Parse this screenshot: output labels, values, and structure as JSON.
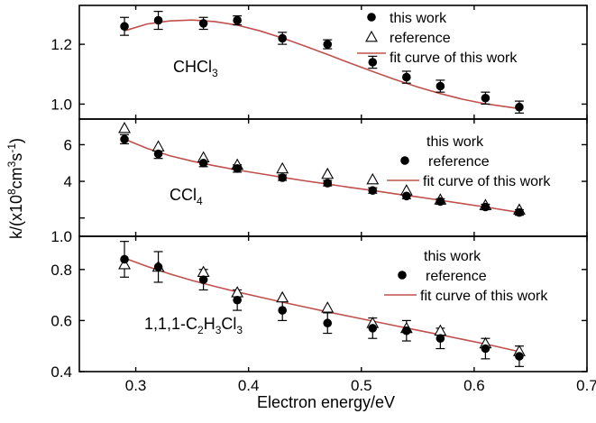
{
  "chart_data": {
    "type": "scatter",
    "xlabel": "Electron energy/eV",
    "ylabel": "k/(x10⁸cm³s⁻¹)",
    "ylabel_parts": {
      "main": "k/(x10",
      "exp1": "8",
      "mid": "cm",
      "exp2": "3",
      "mid2": "s",
      "exp3": "-1",
      "end": ")"
    },
    "xlim": [
      0.25,
      0.7
    ],
    "x_ticks": [
      0.3,
      0.4,
      0.5,
      0.6,
      0.7
    ],
    "x_tick_labels": [
      "0.3",
      "0.4",
      "0.5",
      "0.6",
      "0.7"
    ],
    "panels": [
      {
        "compound": {
          "main": "CHCl",
          "sub": "3",
          "main2": "",
          "sub2": "",
          "main3": "",
          "sub3": ""
        },
        "ylim": [
          0.95,
          1.33
        ],
        "y_ticks": [
          1.0,
          1.2
        ],
        "y_tick_labels": [
          "1.0",
          "1.2"
        ],
        "legend": [
          "this work",
          "reference",
          "fit curve of this work"
        ],
        "this_work": {
          "x": [
            0.29,
            0.32,
            0.36,
            0.39,
            0.43,
            0.47,
            0.51,
            0.54,
            0.57,
            0.61,
            0.64
          ],
          "y": [
            1.26,
            1.28,
            1.27,
            1.28,
            1.22,
            1.2,
            1.14,
            1.09,
            1.06,
            1.02,
            0.99
          ],
          "err": [
            0.03,
            0.03,
            0.02,
            0.015,
            0.02,
            0.015,
            0.02,
            0.02,
            0.02,
            0.02,
            0.02
          ]
        },
        "reference": {
          "x": [],
          "y": []
        },
        "fit": {
          "x": [
            0.29,
            0.31,
            0.33,
            0.35,
            0.37,
            0.39,
            0.41,
            0.43,
            0.45,
            0.47,
            0.49,
            0.51,
            0.53,
            0.55,
            0.57,
            0.59,
            0.61,
            0.64
          ],
          "y": [
            1.245,
            1.268,
            1.278,
            1.281,
            1.276,
            1.264,
            1.245,
            1.221,
            1.194,
            1.166,
            1.137,
            1.109,
            1.082,
            1.057,
            1.035,
            1.016,
            1.001,
            0.985
          ]
        }
      },
      {
        "compound": {
          "main": "CCl",
          "sub": "4",
          "main2": "",
          "sub2": "",
          "main3": "",
          "sub3": ""
        },
        "ylim": [
          1.0,
          7.4
        ],
        "y_ticks": [
          1.0,
          4,
          6
        ],
        "y_tick_labels": [
          "1.0",
          "4",
          "6"
        ],
        "extra_ticks": [
          2.0
        ],
        "legend": [
          "this work",
          "reference",
          "fit curve of this work"
        ],
        "this_work": {
          "x": [
            0.29,
            0.32,
            0.36,
            0.39,
            0.43,
            0.47,
            0.51,
            0.54,
            0.57,
            0.61,
            0.64
          ],
          "y": [
            6.3,
            5.5,
            5.0,
            4.7,
            4.2,
            3.9,
            3.5,
            3.2,
            2.9,
            2.6,
            2.3
          ],
          "err": [
            0.25,
            0.25,
            0.2,
            0.2,
            0.15,
            0.15,
            0.15,
            0.15,
            0.15,
            0.15,
            0.15
          ]
        },
        "reference": {
          "x": [
            0.29,
            0.32,
            0.36,
            0.39,
            0.43,
            0.47,
            0.51,
            0.54,
            0.57,
            0.61,
            0.64
          ],
          "y": [
            6.9,
            5.9,
            5.3,
            4.9,
            4.7,
            4.4,
            4.1,
            3.5,
            3.0,
            2.7,
            2.45
          ]
        },
        "fit": {
          "x": [
            0.29,
            0.31,
            0.33,
            0.35,
            0.37,
            0.39,
            0.41,
            0.43,
            0.45,
            0.47,
            0.49,
            0.51,
            0.53,
            0.55,
            0.57,
            0.59,
            0.61,
            0.64
          ],
          "y": [
            6.3,
            5.8,
            5.4,
            5.1,
            4.85,
            4.62,
            4.42,
            4.22,
            4.03,
            3.85,
            3.67,
            3.5,
            3.32,
            3.15,
            2.97,
            2.78,
            2.6,
            2.3
          ]
        }
      },
      {
        "compound": {
          "main": "1,1,1-C",
          "sub": "2",
          "main2": "H",
          "sub2": "3",
          "main3": "Cl",
          "sub3": "3"
        },
        "ylim": [
          0.4,
          0.93
        ],
        "y_ticks": [
          0.4,
          0.6,
          0.8
        ],
        "y_tick_labels": [
          "0.4",
          "0.6",
          "0.8"
        ],
        "legend": [
          "this work",
          "reference",
          "fit curve of this work"
        ],
        "this_work": {
          "x": [
            0.29,
            0.32,
            0.36,
            0.39,
            0.43,
            0.47,
            0.51,
            0.54,
            0.57,
            0.61,
            0.64
          ],
          "y": [
            0.84,
            0.81,
            0.76,
            0.68,
            0.64,
            0.59,
            0.57,
            0.56,
            0.53,
            0.49,
            0.46
          ],
          "err": [
            0.07,
            0.06,
            0.04,
            0.04,
            0.04,
            0.04,
            0.04,
            0.04,
            0.04,
            0.04,
            0.04
          ]
        },
        "reference": {
          "x": [
            0.29,
            0.32,
            0.36,
            0.39,
            0.43,
            0.47,
            0.51,
            0.54,
            0.57,
            0.61,
            0.64
          ],
          "y": [
            0.82,
            0.81,
            0.79,
            0.71,
            0.69,
            0.65,
            0.59,
            0.57,
            0.56,
            0.51,
            0.48
          ]
        },
        "fit": {
          "x": [
            0.29,
            0.31,
            0.33,
            0.35,
            0.37,
            0.39,
            0.41,
            0.43,
            0.45,
            0.47,
            0.49,
            0.51,
            0.53,
            0.55,
            0.57,
            0.59,
            0.61,
            0.64
          ],
          "y": [
            0.845,
            0.812,
            0.783,
            0.757,
            0.734,
            0.712,
            0.692,
            0.672,
            0.653,
            0.634,
            0.616,
            0.598,
            0.58,
            0.562,
            0.544,
            0.526,
            0.508,
            0.478
          ]
        }
      }
    ],
    "colors": {
      "fit": "#c0504d",
      "marker": "#000000",
      "frame": "#000000"
    },
    "legend_placement": "top-right"
  }
}
